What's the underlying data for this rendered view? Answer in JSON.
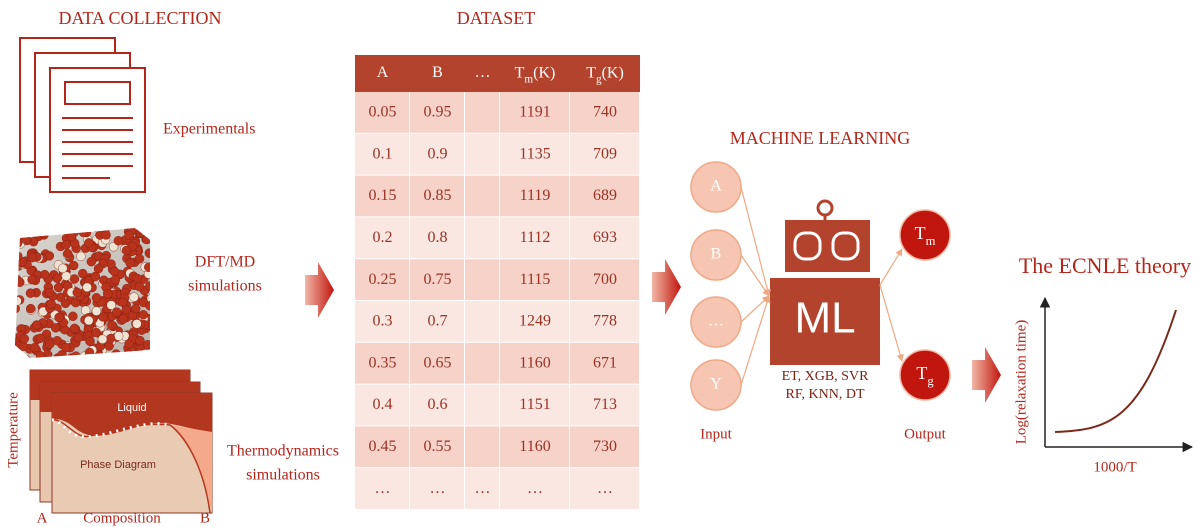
{
  "sections": {
    "data_collection": "DATA COLLECTION",
    "dataset": "DATASET",
    "machine_learning": "MACHINE LEARNING",
    "theory": "The ECNLE theory"
  },
  "sources": {
    "experimental": [
      "Experimentals"
    ],
    "dft_md": [
      "DFT/MD",
      "simulations"
    ],
    "thermodynamics": [
      "Thermodynamics",
      "simulations"
    ]
  },
  "phase_diagram": {
    "liquid": "Liquid",
    "label": "Phase Diagram",
    "y_axis": "Temperature",
    "x_axis": "Composition",
    "left": "A",
    "right": "B"
  },
  "table": {
    "header": [
      "A",
      "B",
      "…",
      {
        "base": "T",
        "sub": "m",
        "unit": "(K)"
      },
      {
        "base": "T",
        "sub": "g",
        "unit": "(K)"
      }
    ],
    "rows": [
      [
        0.05,
        0.95,
        1191,
        740
      ],
      [
        0.1,
        0.9,
        1135,
        709
      ],
      [
        0.15,
        0.85,
        1119,
        689
      ],
      [
        0.2,
        0.8,
        1112,
        693
      ],
      [
        0.25,
        0.75,
        1115,
        700
      ],
      [
        0.3,
        0.7,
        1249,
        778
      ],
      [
        0.35,
        0.65,
        1160,
        671
      ],
      [
        0.4,
        0.6,
        1151,
        713
      ],
      [
        0.45,
        0.55,
        1160,
        730
      ]
    ],
    "ellipsis_row": [
      "…",
      "…",
      "…",
      "…",
      "…"
    ]
  },
  "ml": {
    "inputs": [
      "A",
      "B",
      "…",
      "Y"
    ],
    "input_label": "Input",
    "model": "ML",
    "algorithms": [
      "ET, XGB, SVR",
      "RF, KNN, DT"
    ],
    "outputs": [
      {
        "base": "T",
        "sub": "m"
      },
      {
        "base": "T",
        "sub": "g"
      }
    ],
    "output_label": "Output"
  },
  "theory_plot": {
    "y_label": "Log(relaxation time)",
    "x_label": "1000/T"
  }
}
